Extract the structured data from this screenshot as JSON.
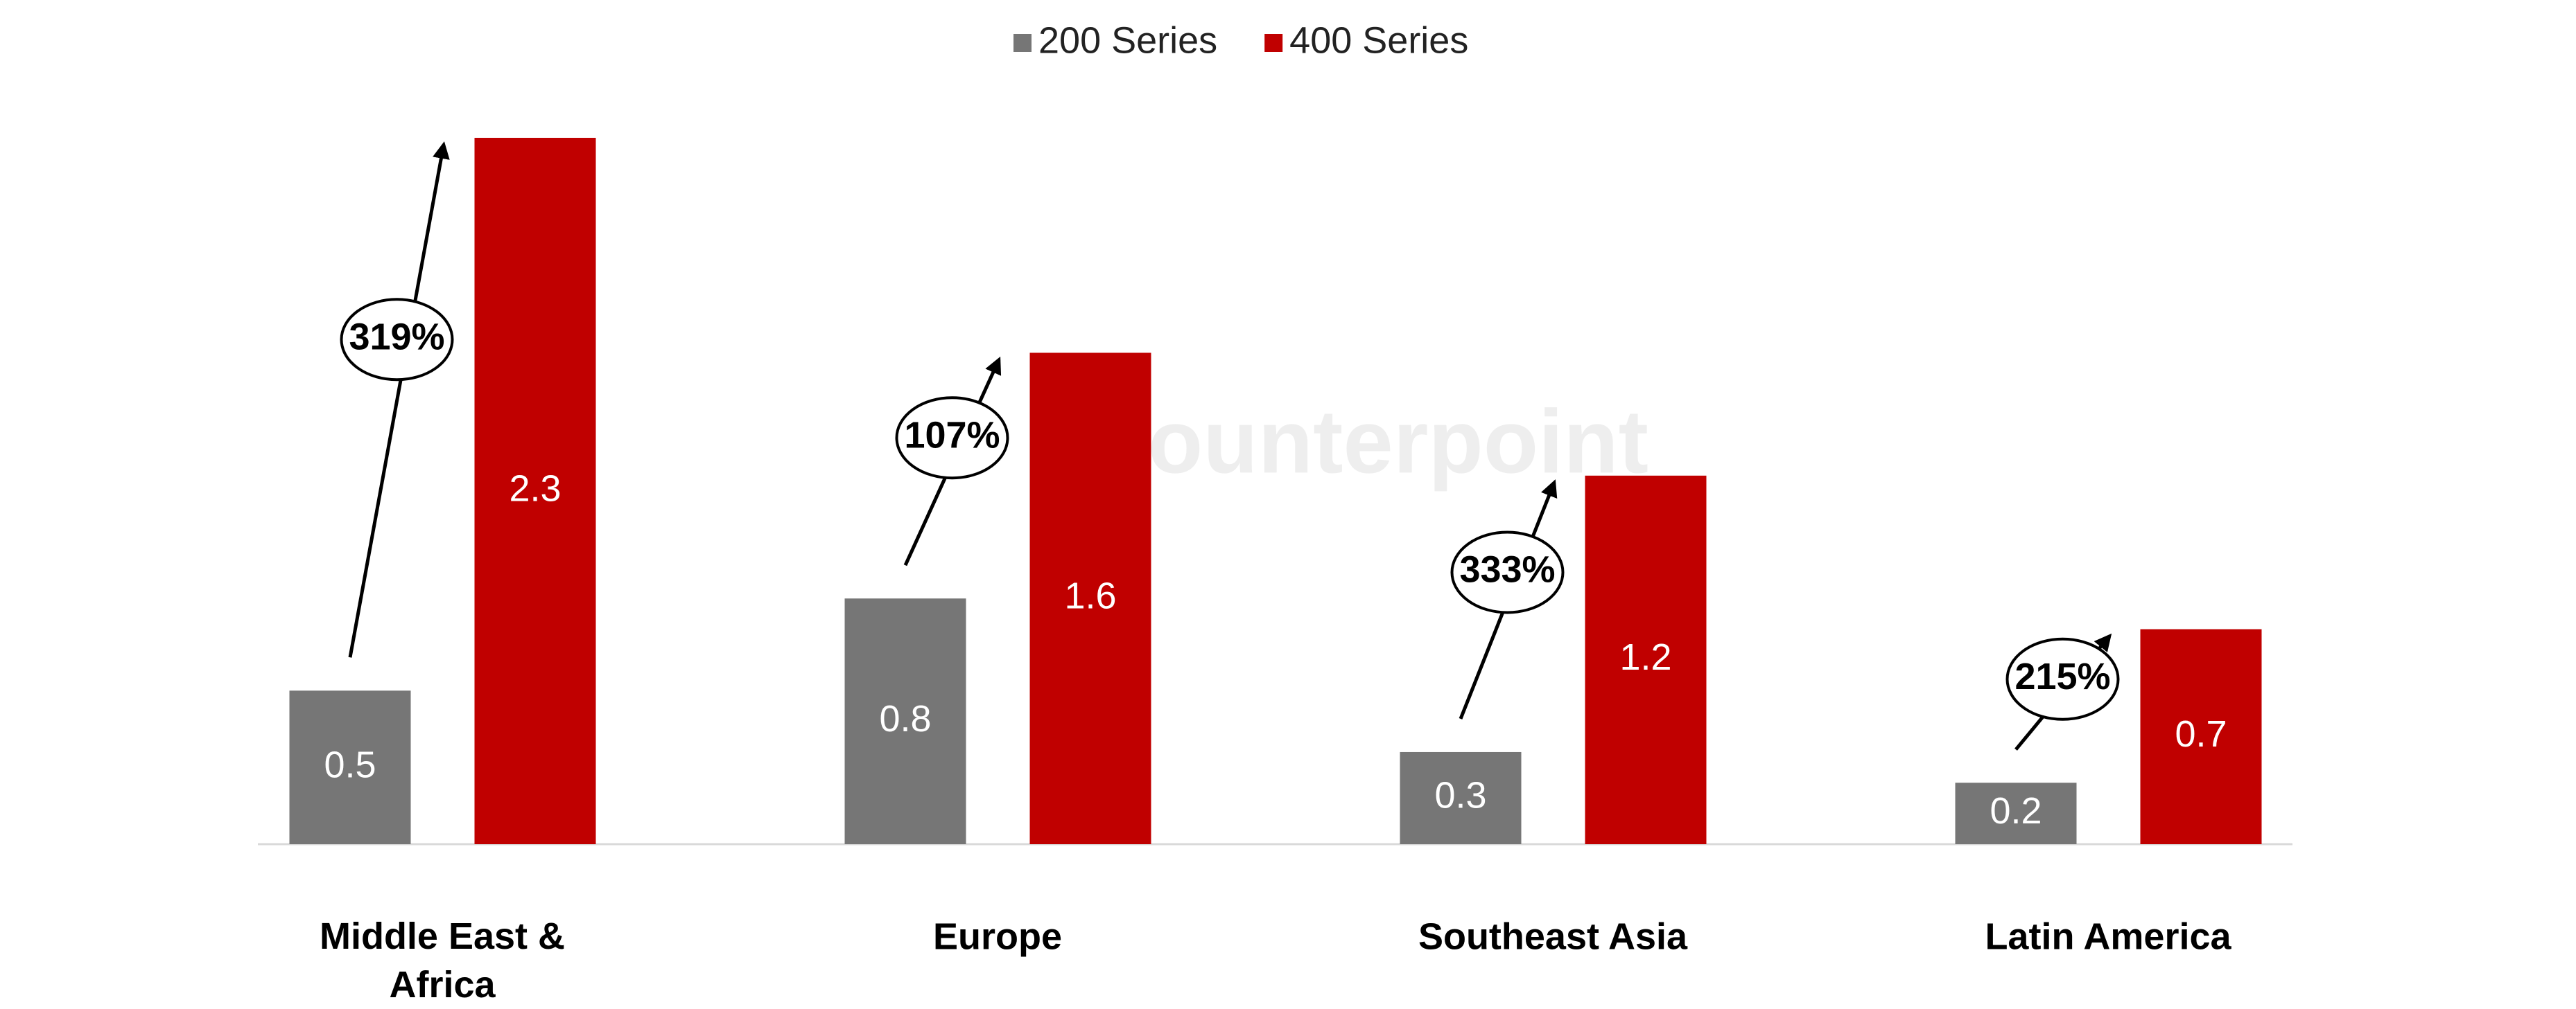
{
  "chart_data": {
    "type": "bar",
    "watermark": "Counterpoint",
    "categories": [
      "Middle East & Africa",
      "Europe",
      "Southeast Asia",
      "Latin America"
    ],
    "series": [
      {
        "name": "200 Series",
        "color": "#767676",
        "values": [
          0.5,
          0.8,
          0.3,
          0.2
        ]
      },
      {
        "name": "400 Series",
        "color": "#c00000",
        "values": [
          2.3,
          1.6,
          1.2,
          0.7
        ]
      }
    ],
    "growth_labels": [
      "319%",
      "107%",
      "333%",
      "215%"
    ],
    "legend": "top"
  }
}
